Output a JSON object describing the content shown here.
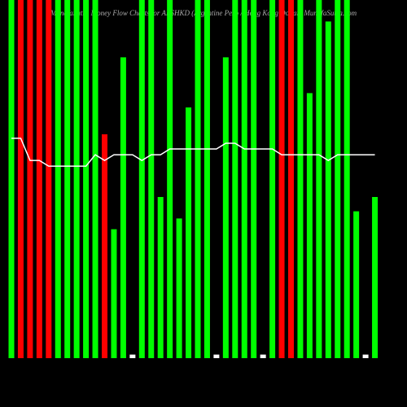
{
  "chart_data": {
    "type": "bar",
    "title": "MunafaSutra Money Flow Charts for ARSHKD (Argentine Peso / Hong Kong Dollar) MunafaSutra.com",
    "ylim": [
      0,
      100
    ],
    "series": [
      {
        "name": "Volume",
        "values": [
          100,
          100,
          100,
          100,
          100,
          100,
          100,
          100,
          100,
          100,
          62.5,
          36,
          84,
          1,
          100,
          100,
          45,
          100,
          39,
          70,
          100,
          100,
          1,
          84,
          100,
          100,
          100,
          1,
          100,
          100,
          100,
          100,
          74,
          100,
          94,
          100,
          100,
          41,
          1,
          45
        ],
        "colors": [
          "#00ff00",
          "#ff0000",
          "#ff0000",
          "#ff0000",
          "#ff0000",
          "#00ff00",
          "#00ff00",
          "#00ff00",
          "#00ff00",
          "#00ff00",
          "#ff0000",
          "#00ff00",
          "#00ff00",
          "#ffffff",
          "#00ff00",
          "#00ff00",
          "#00ff00",
          "#00ff00",
          "#00ff00",
          "#00ff00",
          "#00ff00",
          "#00ff00",
          "#ffffff",
          "#00ff00",
          "#00ff00",
          "#00ff00",
          "#00ff00",
          "#ffffff",
          "#00ff00",
          "#ff0000",
          "#ff0000",
          "#00ff00",
          "#00ff00",
          "#00ff00",
          "#00ff00",
          "#00ff00",
          "#00ff00",
          "#00ff00",
          "#ffffff",
          "#00ff00"
        ]
      },
      {
        "name": "Price",
        "color": "#ffffff",
        "values": [
          61.4,
          61.4,
          55.2,
          55.2,
          53.6,
          53.6,
          53.6,
          53.6,
          53.6,
          56.8,
          55.2,
          56.8,
          56.8,
          56.8,
          55.2,
          56.8,
          56.8,
          58.4,
          58.4,
          58.4,
          58.4,
          58.4,
          58.4,
          60,
          60,
          58.4,
          58.4,
          58.4,
          58.4,
          56.8,
          56.8,
          56.8,
          56.8,
          56.8,
          55.2,
          56.8,
          56.8,
          56.8,
          56.8,
          56.8
        ]
      }
    ]
  }
}
